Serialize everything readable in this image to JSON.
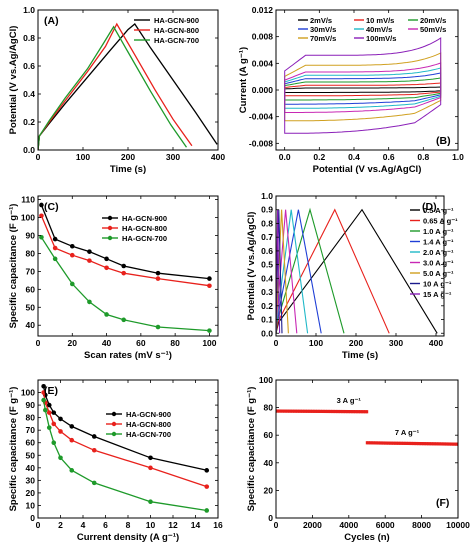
{
  "chart_data": [
    {
      "panel": "(A)",
      "type": "line",
      "xlabel": "Time (s)",
      "ylabel": "Potential (V vs.Ag/AgCl)",
      "xlim": [
        0,
        400
      ],
      "ylim": [
        0,
        1.0
      ],
      "xticks": [
        0,
        100,
        200,
        300,
        400
      ],
      "yticks": [
        0.0,
        0.2,
        0.4,
        0.6,
        0.8,
        1.0
      ],
      "tick_decimals_y": 1,
      "legend_position": "top-right",
      "series": [
        {
          "name": "HA-GCN-900",
          "color": "#000000",
          "x": [
            0,
            3,
            25,
            60,
            110,
            160,
            200,
            215,
            250,
            300,
            350,
            398
          ],
          "y": [
            0.0,
            0.1,
            0.19,
            0.33,
            0.52,
            0.71,
            0.86,
            0.9,
            0.73,
            0.5,
            0.27,
            0.04
          ]
        },
        {
          "name": "HA-GCN-800",
          "color": "#e8211c",
          "x": [
            0,
            3,
            25,
            60,
            110,
            150,
            175,
            215,
            260,
            300,
            342
          ],
          "y": [
            0.0,
            0.1,
            0.2,
            0.35,
            0.56,
            0.74,
            0.9,
            0.68,
            0.43,
            0.22,
            0.03
          ]
        },
        {
          "name": "HA-GCN-700",
          "color": "#1e9a2a",
          "x": [
            0,
            3,
            25,
            60,
            110,
            145,
            168,
            200,
            250,
            295,
            330
          ],
          "y": [
            0.0,
            0.1,
            0.21,
            0.37,
            0.58,
            0.76,
            0.88,
            0.7,
            0.42,
            0.18,
            0.02
          ]
        }
      ]
    },
    {
      "panel": "(B)",
      "type": "line",
      "xlabel": "Potential (V vs.Ag/AgCl)",
      "ylabel": "Current (A g⁻¹)",
      "xlim": [
        -0.05,
        1.0
      ],
      "ylim": [
        -0.009,
        0.012
      ],
      "xticks": [
        0.0,
        0.2,
        0.4,
        0.6,
        0.8,
        1.0
      ],
      "yticks": [
        -0.008,
        -0.004,
        0.0,
        0.004,
        0.008,
        0.012
      ],
      "tick_decimals_x": 1,
      "tick_decimals_y": 3,
      "legend_position": "top",
      "cv_loops": [
        {
          "name": "2mV/s",
          "color": "#000000",
          "amplitude": 0.0003
        },
        {
          "name": "10 mV/s",
          "color": "#e8211c",
          "amplitude": 0.0007
        },
        {
          "name": "20mV/s",
          "color": "#1e9a2a",
          "amplitude": 0.0012
        },
        {
          "name": "30mV/s",
          "color": "#1f3fd6",
          "amplitude": 0.0017
        },
        {
          "name": "40mV/s",
          "color": "#20b8c8",
          "amplitude": 0.0022
        },
        {
          "name": "50mV/s",
          "color": "#c828b4",
          "amplitude": 0.0027
        },
        {
          "name": "70mV/s",
          "color": "#d0a020",
          "amplitude": 0.0037
        },
        {
          "name": "100mV/s",
          "color": "#8a1fb8",
          "amplitude": 0.0052
        }
      ]
    },
    {
      "panel": "(C)",
      "type": "line",
      "xlabel": "Scan rates (mV s⁻¹)",
      "ylabel": "Specific capacitance (F g⁻¹)",
      "xlim": [
        0,
        105
      ],
      "ylim": [
        34,
        112
      ],
      "xticks": [
        0,
        20,
        40,
        60,
        80,
        100
      ],
      "yticks": [
        40,
        50,
        60,
        70,
        80,
        90,
        100,
        110
      ],
      "legend_position": "top-right",
      "series": [
        {
          "name": "HA-GCN-900",
          "color": "#000000",
          "marker": true,
          "x": [
            2,
            10,
            20,
            30,
            40,
            50,
            70,
            100
          ],
          "y": [
            107,
            88,
            84,
            81,
            77,
            73,
            69,
            66
          ]
        },
        {
          "name": "HA-GCN-800",
          "color": "#e8211c",
          "marker": true,
          "x": [
            2,
            10,
            20,
            30,
            40,
            50,
            70,
            100
          ],
          "y": [
            101,
            83,
            79,
            76,
            72,
            69,
            66,
            62
          ]
        },
        {
          "name": "HA-GCN-700",
          "color": "#1e9a2a",
          "marker": true,
          "x": [
            2,
            10,
            20,
            30,
            40,
            50,
            70,
            100
          ],
          "y": [
            89,
            77,
            63,
            53,
            46,
            43,
            39,
            37
          ]
        }
      ]
    },
    {
      "panel": "(D)",
      "type": "line",
      "xlabel": "Time (s)",
      "ylabel": "Potential (V vs.Ag/AgCl)",
      "xlim": [
        0,
        420
      ],
      "ylim": [
        -0.02,
        1.0
      ],
      "xticks": [
        0,
        100,
        200,
        300,
        400
      ],
      "yticks": [
        0.0,
        0.1,
        0.2,
        0.3,
        0.4,
        0.5,
        0.6,
        0.7,
        0.8,
        0.9,
        1.0
      ],
      "tick_decimals_y": 1,
      "legend_position": "right",
      "gcd_curves": [
        {
          "name": "0.5 A g⁻¹",
          "color": "#000000",
          "charge": 215,
          "end": 403
        },
        {
          "name": "0.65 A g⁻¹",
          "color": "#e8211c",
          "charge": 147,
          "end": 283
        },
        {
          "name": "1.0 A g⁻¹",
          "color": "#1e9a2a",
          "charge": 85,
          "end": 170
        },
        {
          "name": "1.4 A g⁻¹",
          "color": "#1f3fd6",
          "charge": 56,
          "end": 113
        },
        {
          "name": "2.0 A g⁻¹",
          "color": "#20b8c8",
          "charge": 38,
          "end": 79
        },
        {
          "name": "3.0 A g⁻¹",
          "color": "#c828b4",
          "charge": 24,
          "end": 52
        },
        {
          "name": "5.0 A g⁻¹",
          "color": "#d0a020",
          "charge": 14,
          "end": 31
        },
        {
          "name": "10 A g⁻¹",
          "color": "#1a1a8c",
          "charge": 7,
          "end": 15
        },
        {
          "name": "15 A g⁻¹",
          "color": "#8a1fb8",
          "charge": 4,
          "end": 9
        }
      ]
    },
    {
      "panel": "(E)",
      "type": "line",
      "xlabel": "Current density (A g⁻¹)",
      "ylabel": "Specific capacitance (F g⁻¹)",
      "xlim": [
        0,
        16
      ],
      "ylim": [
        0,
        110
      ],
      "xticks": [
        0,
        2,
        4,
        6,
        8,
        10,
        12,
        14,
        16
      ],
      "yticks": [
        0,
        10,
        20,
        30,
        40,
        50,
        60,
        70,
        80,
        90,
        100
      ],
      "legend_position": "right",
      "series": [
        {
          "name": "HA-GCN-900",
          "color": "#000000",
          "marker": true,
          "x": [
            0.5,
            0.65,
            1.0,
            1.4,
            2.0,
            3.0,
            5.0,
            10,
            15
          ],
          "y": [
            105,
            98,
            90,
            84,
            79,
            73,
            65,
            48,
            38
          ]
        },
        {
          "name": "HA-GCN-800",
          "color": "#e8211c",
          "marker": true,
          "x": [
            0.5,
            0.65,
            1.0,
            1.4,
            2.0,
            3.0,
            5.0,
            10,
            15
          ],
          "y": [
            100,
            92,
            84,
            75,
            69,
            62,
            54,
            40,
            25
          ]
        },
        {
          "name": "HA-GCN-700",
          "color": "#1e9a2a",
          "marker": true,
          "x": [
            0.5,
            0.65,
            1.0,
            1.4,
            2.0,
            3.0,
            5.0,
            10,
            15
          ],
          "y": [
            94,
            86,
            72,
            60,
            48,
            38,
            28,
            13,
            6
          ]
        }
      ]
    },
    {
      "panel": "(F)",
      "type": "scatter",
      "xlabel": "Cycles (n)",
      "ylabel": "Specific capacitance (F g⁻¹)",
      "xlim": [
        0,
        10000
      ],
      "ylim": [
        0,
        100
      ],
      "xticks": [
        0,
        2000,
        4000,
        6000,
        8000,
        10000
      ],
      "yticks": [
        0,
        20,
        40,
        60,
        80,
        100
      ],
      "color": "#e8211c",
      "segments": [
        {
          "label": "3 A g⁻¹",
          "x_range": [
            0,
            5000
          ],
          "y_start": 77.5,
          "y_end": 77.0
        },
        {
          "label": "7 A g⁻¹",
          "x_range": [
            5000,
            10000
          ],
          "y_start": 54.5,
          "y_end": 53.5
        }
      ]
    }
  ]
}
